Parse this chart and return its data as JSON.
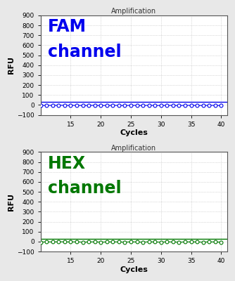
{
  "title": "Amplification",
  "xlabel": "Cycles",
  "ylabel": "RFU",
  "xlim": [
    10,
    41
  ],
  "ylim": [
    -100,
    900
  ],
  "yticks": [
    -100,
    0,
    100,
    200,
    300,
    400,
    500,
    600,
    700,
    800,
    900
  ],
  "xticks": [
    15,
    20,
    25,
    30,
    35,
    40
  ],
  "cycles": [
    10,
    11,
    12,
    13,
    14,
    15,
    16,
    17,
    18,
    19,
    20,
    21,
    22,
    23,
    24,
    25,
    26,
    27,
    28,
    29,
    30,
    31,
    32,
    33,
    34,
    35,
    36,
    37,
    38,
    39,
    40
  ],
  "fam_values": [
    -5,
    -3,
    -4,
    -2,
    -3,
    -4,
    -3,
    -5,
    -4,
    -3,
    -5,
    -4,
    -3,
    -4,
    -5,
    -3,
    -4,
    -5,
    -3,
    -4,
    -5,
    -3,
    -4,
    -5,
    -4,
    -3,
    -4,
    -5,
    -3,
    -4,
    -5
  ],
  "hex_values": [
    -5,
    -3,
    -4,
    -2,
    -3,
    -4,
    -3,
    -5,
    -4,
    -3,
    -5,
    -4,
    -3,
    -4,
    -5,
    -3,
    -4,
    -5,
    -3,
    -4,
    -5,
    -3,
    -4,
    -5,
    -4,
    -3,
    -4,
    -5,
    -3,
    -4,
    -5
  ],
  "fam_threshold": 30,
  "hex_threshold": 30,
  "fam_color": "#0000EE",
  "hex_color": "#007700",
  "fam_label_line1": "FAM",
  "fam_label_line2": "channel",
  "hex_label_line1": "HEX",
  "hex_label_line2": "channel",
  "bg_color": "#FFFFFF",
  "outer_bg": "#E8E8E8",
  "grid_color": "#BBBBBB",
  "spine_color": "#555555",
  "title_fontsize": 7,
  "tick_fontsize": 6.5,
  "label_fontsize": 8,
  "channel_fontsize": 17
}
